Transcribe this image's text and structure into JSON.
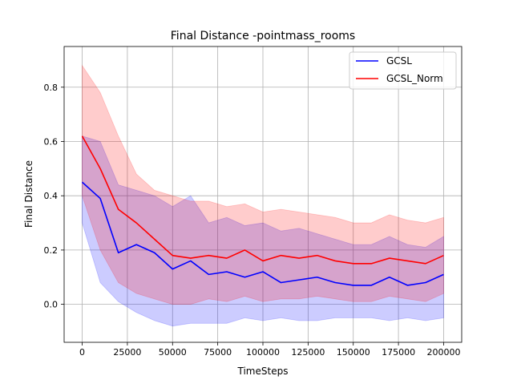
{
  "chart_data": {
    "type": "line",
    "title": "Final Distance -pointmass_rooms",
    "xlabel": "TimeSteps",
    "ylabel": "Final Distance",
    "xlim": [
      -10000,
      210000
    ],
    "ylim": [
      -0.14,
      0.95
    ],
    "xticks": [
      0,
      25000,
      50000,
      75000,
      100000,
      125000,
      150000,
      175000,
      200000
    ],
    "xtick_labels": [
      "0",
      "25000",
      "50000",
      "75000",
      "100000",
      "125000",
      "150000",
      "175000",
      "200000"
    ],
    "yticks": [
      0.0,
      0.2,
      0.4,
      0.6,
      0.8
    ],
    "ytick_labels": [
      "0.0",
      "0.2",
      "0.4",
      "0.6",
      "0.8"
    ],
    "grid": true,
    "legend_position": "top-right",
    "x": [
      0,
      10000,
      20000,
      30000,
      40000,
      50000,
      60000,
      70000,
      80000,
      90000,
      100000,
      110000,
      120000,
      130000,
      140000,
      150000,
      160000,
      170000,
      180000,
      190000,
      200000
    ],
    "series": [
      {
        "name": "GCSL",
        "color": "#0000ff",
        "band_color": "#0000ff",
        "values": [
          0.45,
          0.39,
          0.19,
          0.22,
          0.19,
          0.13,
          0.16,
          0.11,
          0.12,
          0.1,
          0.12,
          0.08,
          0.09,
          0.1,
          0.08,
          0.07,
          0.07,
          0.1,
          0.07,
          0.08,
          0.11
        ],
        "lower": [
          0.3,
          0.08,
          0.01,
          -0.03,
          -0.06,
          -0.08,
          -0.07,
          -0.07,
          -0.07,
          -0.05,
          -0.06,
          -0.05,
          -0.06,
          -0.06,
          -0.05,
          -0.05,
          -0.05,
          -0.06,
          -0.05,
          -0.06,
          -0.05
        ],
        "upper": [
          0.62,
          0.6,
          0.44,
          0.42,
          0.4,
          0.36,
          0.4,
          0.3,
          0.32,
          0.29,
          0.3,
          0.27,
          0.28,
          0.26,
          0.24,
          0.22,
          0.22,
          0.25,
          0.22,
          0.21,
          0.25
        ]
      },
      {
        "name": "GCSL_Norm",
        "color": "#ff0000",
        "band_color": "#ff0000",
        "values": [
          0.62,
          0.5,
          0.35,
          0.3,
          0.24,
          0.18,
          0.17,
          0.18,
          0.17,
          0.2,
          0.16,
          0.18,
          0.17,
          0.18,
          0.16,
          0.15,
          0.15,
          0.17,
          0.16,
          0.15,
          0.18
        ],
        "lower": [
          0.4,
          0.2,
          0.08,
          0.04,
          0.02,
          0.0,
          0.0,
          0.02,
          0.01,
          0.03,
          0.01,
          0.02,
          0.02,
          0.03,
          0.02,
          0.01,
          0.01,
          0.03,
          0.02,
          0.01,
          0.04
        ],
        "upper": [
          0.88,
          0.78,
          0.62,
          0.48,
          0.42,
          0.4,
          0.38,
          0.38,
          0.36,
          0.37,
          0.34,
          0.35,
          0.34,
          0.33,
          0.32,
          0.3,
          0.3,
          0.33,
          0.31,
          0.3,
          0.32
        ]
      }
    ]
  }
}
